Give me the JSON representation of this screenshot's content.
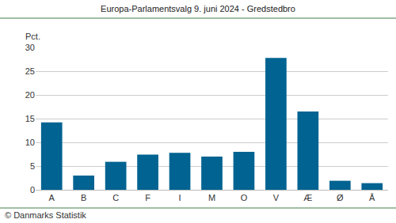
{
  "chart_data": {
    "type": "bar",
    "title": "Europa-Parlamentsvalg 9. juni 2024 - Gredstedbro",
    "ylabel": "Pct.",
    "source": "© Danmarks Statistik",
    "categories": [
      "A",
      "B",
      "C",
      "F",
      "I",
      "M",
      "O",
      "V",
      "Æ",
      "Ø",
      "Å"
    ],
    "values": [
      14.2,
      3.0,
      5.9,
      7.4,
      7.8,
      7.0,
      8.0,
      27.8,
      16.5,
      1.9,
      1.4
    ],
    "color": "#006391",
    "ylim": [
      0,
      30
    ],
    "yticks": [
      0,
      5,
      10,
      15,
      20,
      25,
      30
    ],
    "grid": true
  }
}
